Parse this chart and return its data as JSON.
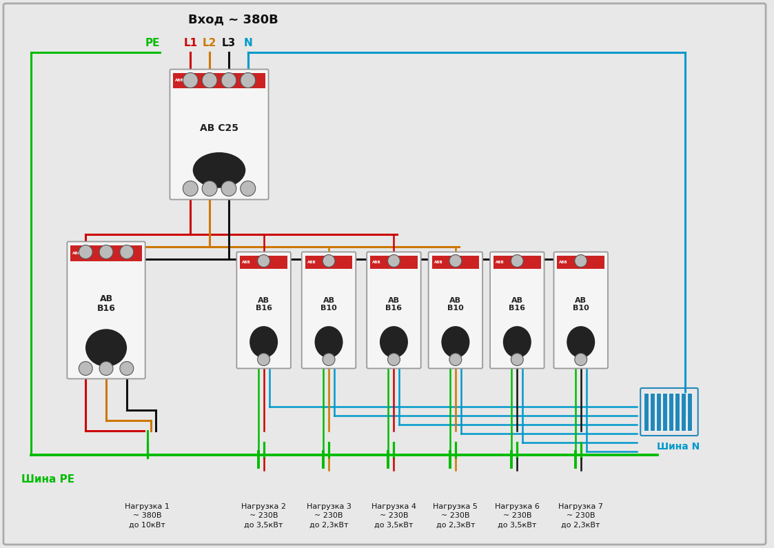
{
  "title": "Вход ~ 380В",
  "bg_color": "#e8e8e8",
  "wire_colors": {
    "PE": "#00bb00",
    "L1": "#cc0000",
    "L2": "#cc7700",
    "L3": "#111111",
    "N": "#0099cc"
  },
  "phase_labels": [
    "PE",
    "L1",
    "L2",
    "L3",
    "N"
  ],
  "phase_label_colors": [
    "#00bb00",
    "#cc0000",
    "#cc7700",
    "#111111",
    "#0099cc"
  ],
  "main_breaker_label": "AB C25",
  "left_breaker_label": "AB\nB16",
  "sub_breaker_labels": [
    "AB\nB16",
    "AB\nB10",
    "AB\nB16",
    "AB\nB10",
    "AB\nB16",
    "AB\nB10"
  ],
  "sub_phases": [
    "L1",
    "L2",
    "L1",
    "L2",
    "L3",
    "L3"
  ],
  "loads": [
    "Нагрузка 1\n~ 380В\nдо 10кВт",
    "Нагрузка 2\n~ 230В\nдо 3,5кВт",
    "Нагрузка 3\n~ 230В\nдо 2,3кВт",
    "Нагрузка 4\n~ 230В\nдо 3,5кВт",
    "Нагрузка 5\n~ 230В\nдо 2,3кВт",
    "Нагрузка 6\n~ 230В\nдо 3,5кВт",
    "Нагрузка 7\n~ 230В\nдо 2,3кВт"
  ],
  "shina_pe_label": "Шина PE",
  "shina_n_label": "Шина N",
  "lw_main": 2.2,
  "lw_wire": 1.8
}
